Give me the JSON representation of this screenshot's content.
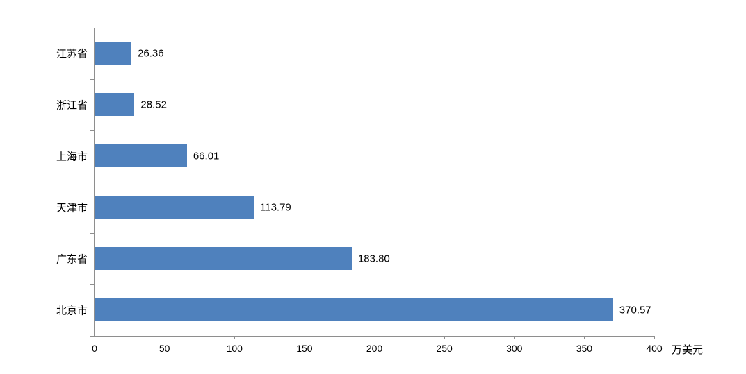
{
  "chart_data": {
    "type": "bar",
    "orientation": "horizontal",
    "title": "",
    "categories": [
      "江苏省",
      "浙江省",
      "上海市",
      "天津市",
      "广东省",
      "北京市"
    ],
    "values": [
      26.36,
      28.52,
      66.01,
      113.79,
      183.8,
      370.57
    ],
    "value_labels": [
      "26.36",
      "28.52",
      "66.01",
      "113.79",
      "183.80",
      "370.57"
    ],
    "x_ticks": [
      "0",
      "50",
      "100",
      "150",
      "200",
      "250",
      "300",
      "350",
      "400"
    ],
    "x_tick_values": [
      0,
      50,
      100,
      150,
      200,
      250,
      300,
      350,
      400
    ],
    "xlim": [
      0,
      400
    ],
    "xlabel": "万美元",
    "ylabel": "",
    "grid": false,
    "legend": false,
    "bar_color": "#4F81BD",
    "axis_color": "#8E8E8E",
    "text_color": "#000000"
  }
}
